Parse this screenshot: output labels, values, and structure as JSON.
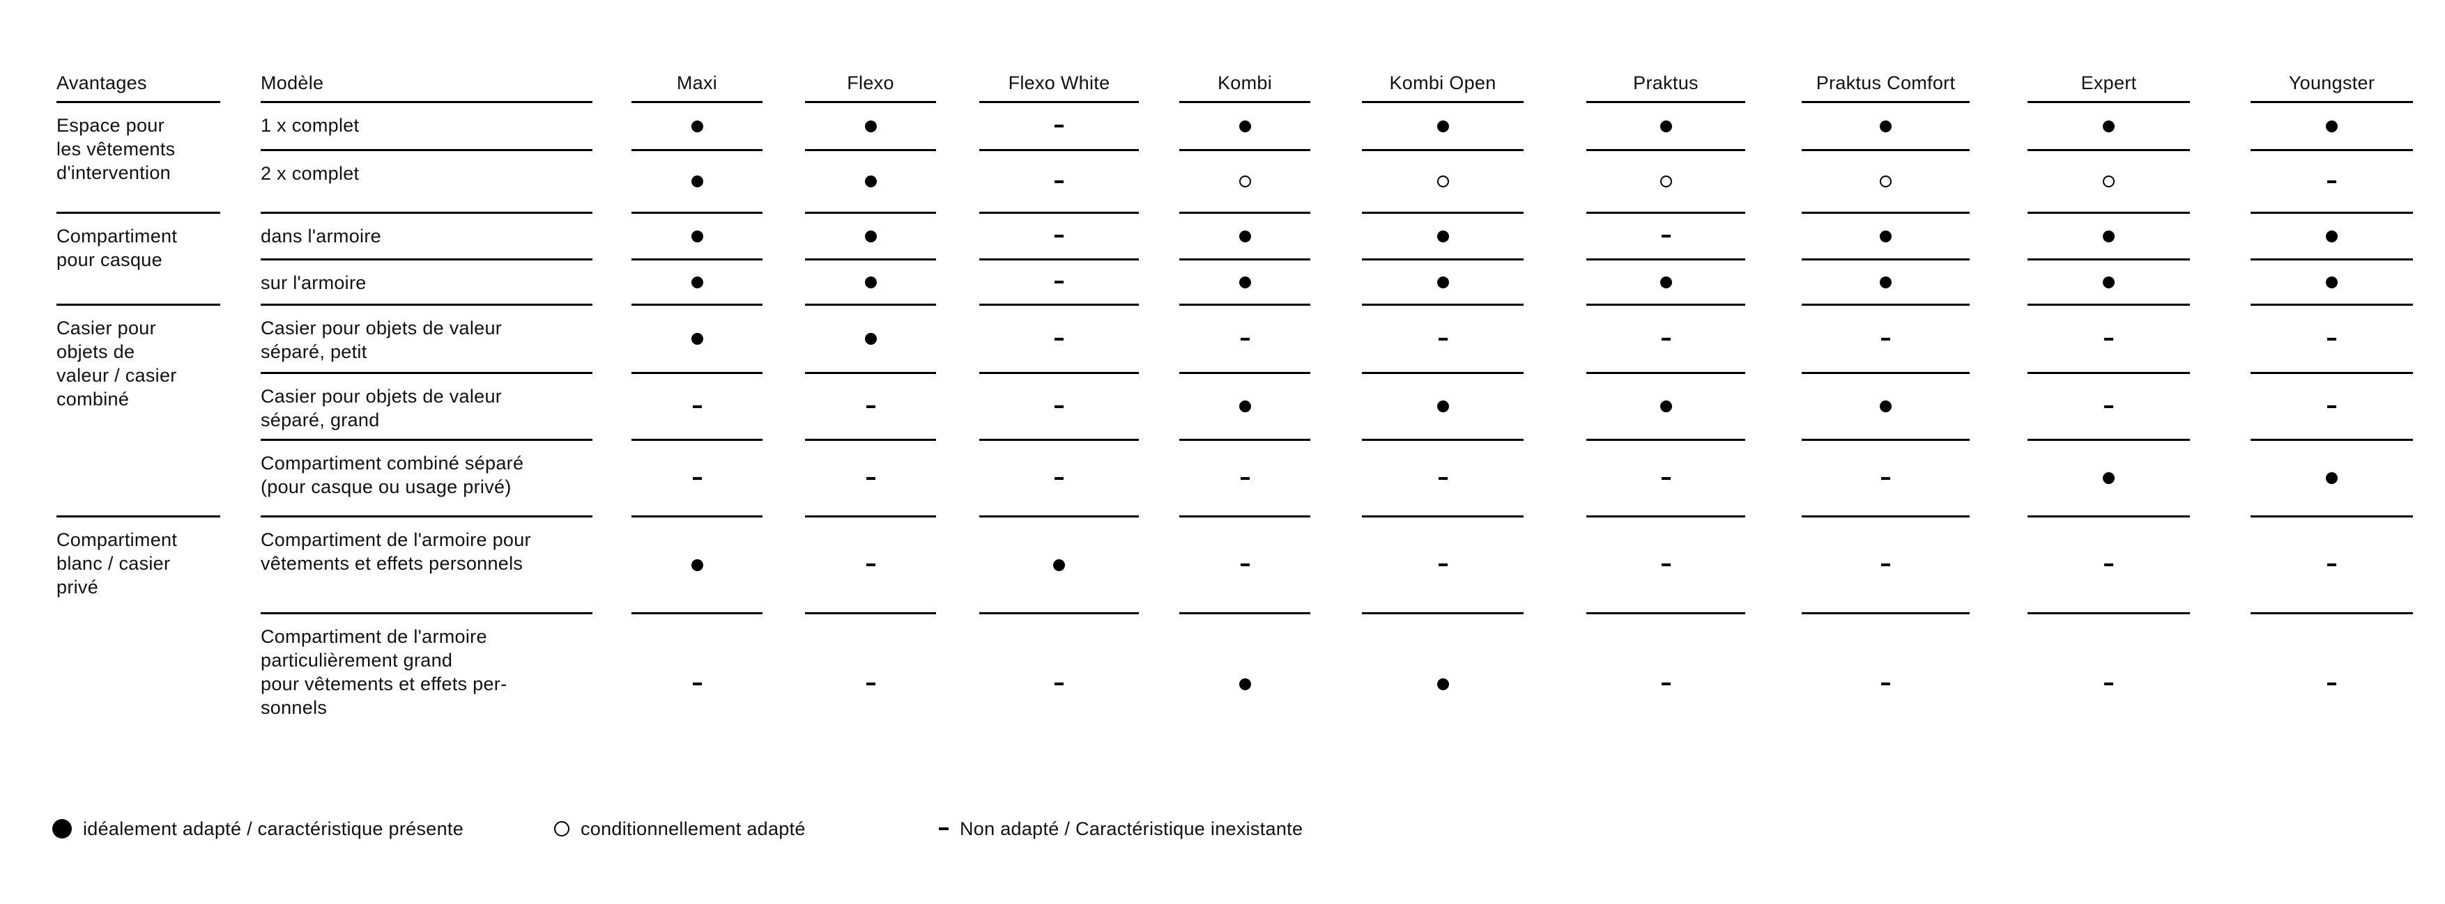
{
  "colors": {
    "background": "#ffffff",
    "ink": "#111111",
    "rule": "#000000"
  },
  "table": {
    "advantage_header": "Avantages",
    "model_header": "Modèle",
    "model_columns": [
      "Maxi",
      "Flexo",
      "Flexo White",
      "Kombi",
      "Kombi Open",
      "Praktus",
      "Praktus Comfort",
      "Expert",
      "Youngster"
    ],
    "groups": [
      {
        "advantage": "Espace pour\nles vêtements\nd'intervention",
        "rows": [
          {
            "label": "1 x complet",
            "cells": [
              "filled",
              "filled",
              "dash",
              "filled",
              "filled",
              "filled",
              "filled",
              "filled",
              "filled"
            ]
          },
          {
            "label": "2 x complet",
            "cells": [
              "filled",
              "filled",
              "dash",
              "outline",
              "outline",
              "outline",
              "outline",
              "outline",
              "dash"
            ]
          }
        ]
      },
      {
        "advantage": "Compartiment\npour casque",
        "rows": [
          {
            "label": "dans l'armoire",
            "cells": [
              "filled",
              "filled",
              "dash",
              "filled",
              "filled",
              "dash",
              "filled",
              "filled",
              "filled"
            ]
          },
          {
            "label": "sur l'armoire",
            "cells": [
              "filled",
              "filled",
              "dash",
              "filled",
              "filled",
              "filled",
              "filled",
              "filled",
              "filled"
            ]
          }
        ]
      },
      {
        "advantage": "Casier pour\nobjets de\nvaleur / casier\ncombiné",
        "rows": [
          {
            "label": "Casier pour objets de valeur\nséparé, petit",
            "cells": [
              "filled",
              "filled",
              "dash",
              "dash",
              "dash",
              "dash",
              "dash",
              "dash",
              "dash"
            ]
          },
          {
            "label": "Casier pour objets de valeur\nséparé, grand",
            "cells": [
              "dash",
              "dash",
              "dash",
              "filled",
              "filled",
              "filled",
              "filled",
              "dash",
              "dash"
            ]
          },
          {
            "label": "Compartiment combiné séparé\n(pour casque ou usage privé)",
            "cells": [
              "dash",
              "dash",
              "dash",
              "dash",
              "dash",
              "dash",
              "dash",
              "filled",
              "filled"
            ]
          }
        ]
      },
      {
        "advantage": "Compartiment\nblanc / casier\nprivé",
        "rows": [
          {
            "label": "Compartiment de l'armoire pour\nvêtements et effets personnels",
            "cells": [
              "filled",
              "dash",
              "filled",
              "dash",
              "dash",
              "dash",
              "dash",
              "dash",
              "dash"
            ]
          },
          {
            "label": "Compartiment de l'armoire\nparticulièrement grand\npour vêtements et effets per-\nsonnels",
            "cells": [
              "dash",
              "dash",
              "dash",
              "filled",
              "filled",
              "dash",
              "dash",
              "dash",
              "dash"
            ]
          }
        ]
      }
    ]
  },
  "legend": {
    "items": [
      {
        "symbol": "filled",
        "label": "idéalement adapté / caractéristique présente"
      },
      {
        "symbol": "outline",
        "label": "conditionnellement adapté"
      },
      {
        "symbol": "dash",
        "label": "Non adapté / Caractéristique inexistante"
      }
    ]
  }
}
